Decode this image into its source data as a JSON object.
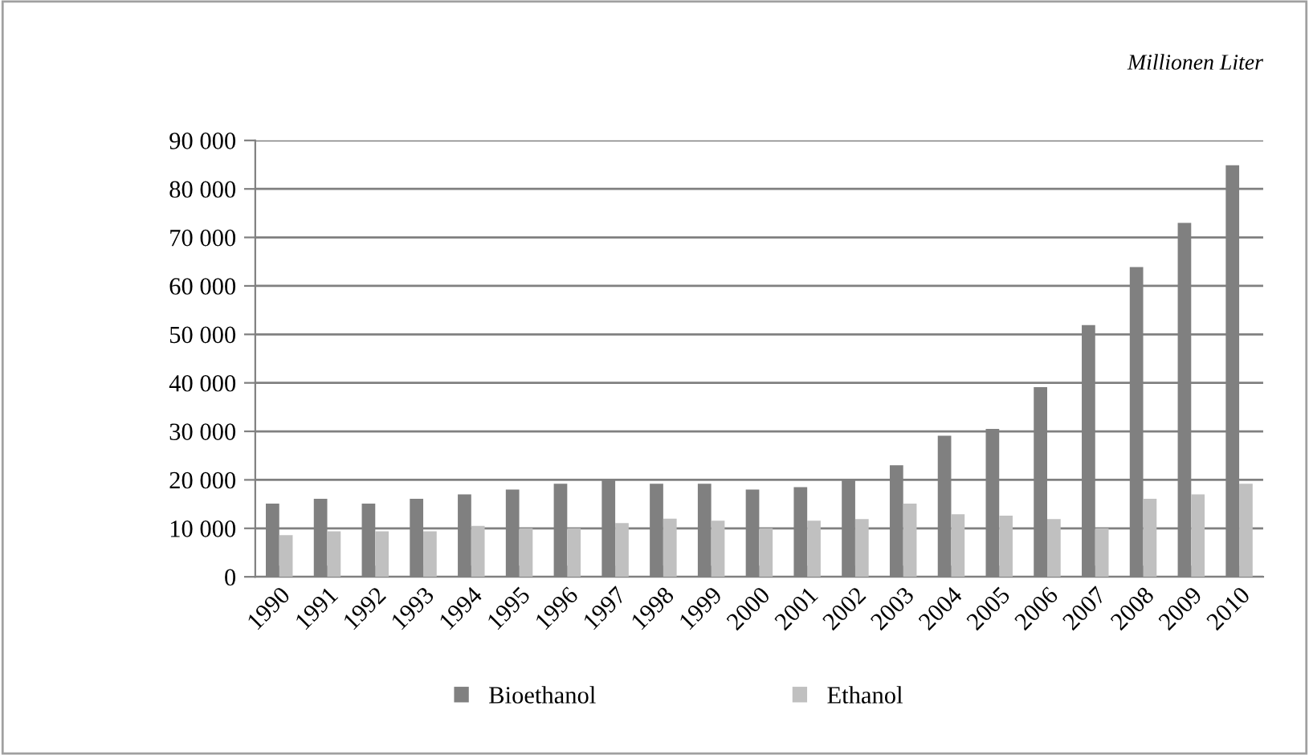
{
  "chart_data": {
    "type": "bar",
    "subtitle": "Millionen Liter",
    "categories": [
      "1990",
      "1991",
      "1992",
      "1993",
      "1994",
      "1995",
      "1996",
      "1997",
      "1998",
      "1999",
      "2000",
      "2001",
      "2002",
      "2003",
      "2004",
      "2005",
      "2006",
      "2007",
      "2008",
      "2009",
      "2010"
    ],
    "series": [
      {
        "name": "Bioethanol",
        "color": "#808080",
        "values": [
          15100,
          16100,
          15100,
          16100,
          17000,
          18000,
          19200,
          20100,
          19200,
          19200,
          18000,
          18500,
          20000,
          23000,
          29100,
          30500,
          39100,
          51900,
          63900,
          73000,
          84900
        ]
      },
      {
        "name": "Ethanol",
        "color": "#c0c0c0",
        "values": [
          8600,
          9400,
          9400,
          9400,
          10500,
          10000,
          10000,
          11100,
          12000,
          11600,
          10000,
          11600,
          11900,
          15100,
          12900,
          12600,
          11900,
          10000,
          16100,
          17000,
          19200
        ]
      }
    ],
    "ylim": [
      0,
      90000
    ],
    "yticks": [
      {
        "value": 0,
        "label": "0"
      },
      {
        "value": 10000,
        "label": "10 000"
      },
      {
        "value": 20000,
        "label": "20 000"
      },
      {
        "value": 30000,
        "label": "30 000"
      },
      {
        "value": 40000,
        "label": "40 000"
      },
      {
        "value": 50000,
        "label": "50 000"
      },
      {
        "value": 60000,
        "label": "60 000"
      },
      {
        "value": 70000,
        "label": "70 000"
      },
      {
        "value": 80000,
        "label": "80 000"
      },
      {
        "value": 90000,
        "label": "90 000"
      }
    ],
    "grid": "y",
    "legend": "bottom"
  }
}
